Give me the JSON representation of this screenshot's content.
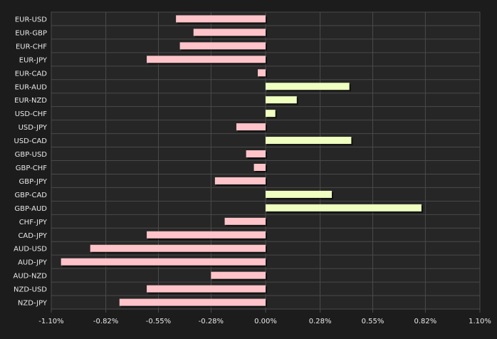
{
  "chart_data": {
    "type": "bar",
    "orientation": "horizontal",
    "categories": [
      "EUR-USD",
      "EUR-GBP",
      "EUR-CHF",
      "EUR-JPY",
      "EUR-CAD",
      "EUR-AUD",
      "EUR-NZD",
      "USD-CHF",
      "USD-JPY",
      "USD-CAD",
      "GBP-USD",
      "GBP-CHF",
      "GBP-JPY",
      "GBP-CAD",
      "GBP-AUD",
      "CHF-JPY",
      "CAD-JPY",
      "AUD-USD",
      "AUD-JPY",
      "AUD-NZD",
      "NZD-USD",
      "NZD-JPY"
    ],
    "values": [
      -0.46,
      -0.37,
      -0.44,
      -0.61,
      -0.04,
      0.43,
      0.16,
      0.05,
      -0.15,
      0.44,
      -0.1,
      -0.06,
      -0.26,
      0.34,
      0.8,
      -0.21,
      -0.61,
      -0.9,
      -1.05,
      -0.28,
      -0.61,
      -0.75
    ],
    "xlim": [
      -1.1,
      1.1
    ],
    "xticks": [
      -1.1,
      -0.82,
      -0.55,
      -0.28,
      0.0,
      0.28,
      0.55,
      0.82,
      1.1
    ],
    "xtick_labels": [
      "-1.10%",
      "-0.82%",
      "-0.55%",
      "-0.28%",
      "0.00%",
      "0.28%",
      "0.55%",
      "0.82%",
      "1.10%"
    ],
    "grid": true,
    "colors": {
      "background": "#1c1c1c",
      "plot_background": "#262626",
      "grid": "#4a4a4a",
      "positive": "#efffc0",
      "negative": "#ffc4c9",
      "shadow": "#000000",
      "text": "#e8e8e8"
    }
  }
}
